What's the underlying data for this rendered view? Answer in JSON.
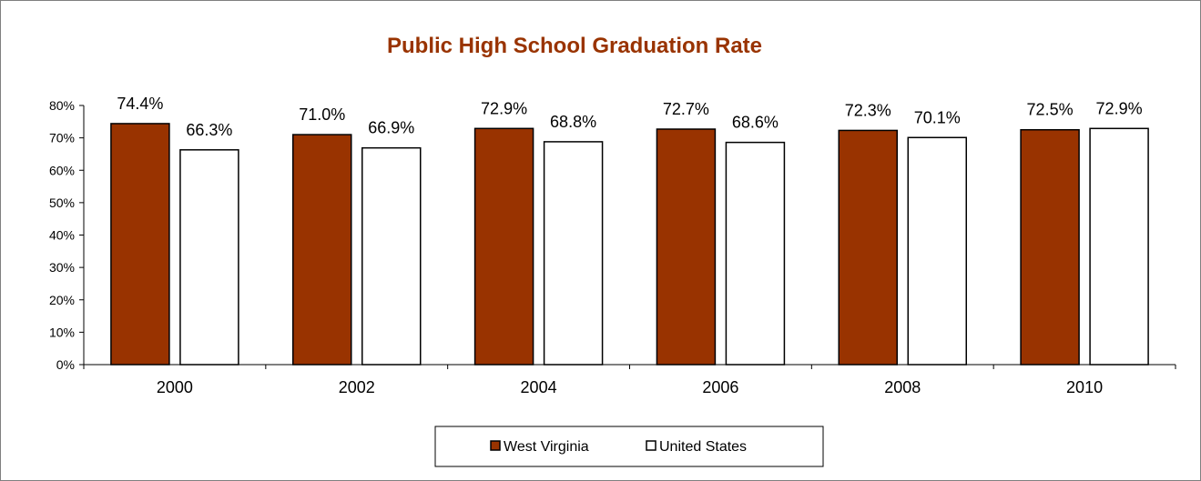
{
  "chart_data": {
    "type": "bar",
    "title": "Public High School Graduation Rate",
    "title_color": "#993300",
    "categories": [
      "2000",
      "2002",
      "2004",
      "2006",
      "2008",
      "2010"
    ],
    "series": [
      {
        "name": "West Virginia",
        "color": "#993300",
        "values": [
          74.4,
          71.0,
          72.9,
          72.7,
          72.3,
          72.5
        ],
        "labels": [
          "74.4%",
          "71.0%",
          "72.9%",
          "72.7%",
          "72.3%",
          "72.5%"
        ]
      },
      {
        "name": "United States",
        "color": "#ffffff",
        "values": [
          66.3,
          66.9,
          68.8,
          68.6,
          70.1,
          72.9
        ],
        "labels": [
          "66.3%",
          "66.9%",
          "68.8%",
          "68.6%",
          "70.1%",
          "72.9%"
        ]
      }
    ],
    "yticks": [
      "0%",
      "10%",
      "20%",
      "30%",
      "40%",
      "50%",
      "60%",
      "70%",
      "80%"
    ],
    "ylim": [
      0,
      80
    ],
    "xlabel": "",
    "ylabel": "",
    "grid": false,
    "legend": "bottom-center"
  }
}
